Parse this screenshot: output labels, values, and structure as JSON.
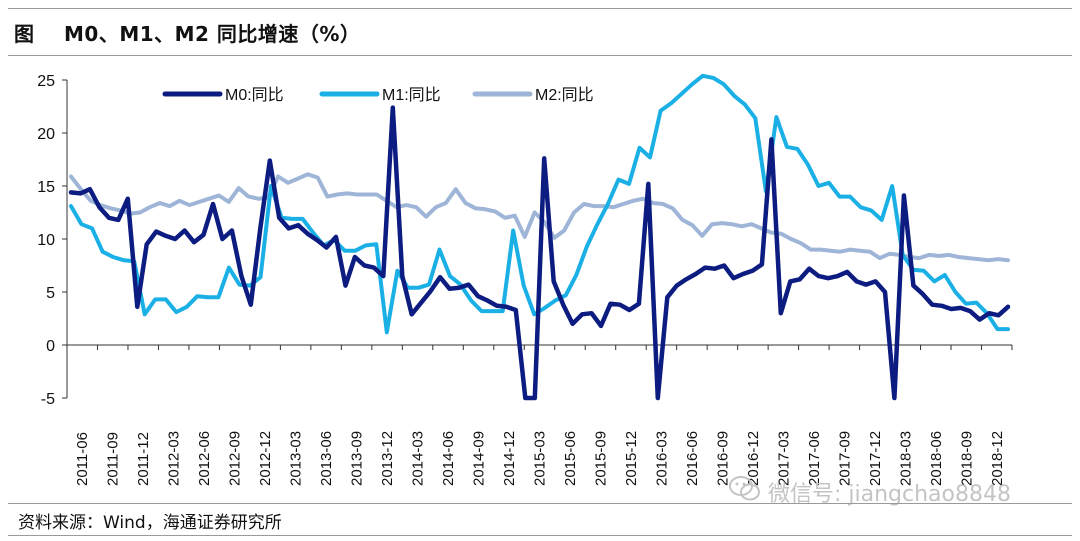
{
  "header": {
    "label": "图",
    "title": "M0、M1、M2 同比增速（%）"
  },
  "source": "资料来源：Wind，海通证券研究所",
  "watermark": "微信号: jiangchao8848",
  "chart_data": {
    "type": "line",
    "ylim": [
      -5,
      25
    ],
    "yticks": [
      -5,
      0,
      5,
      10,
      15,
      20,
      25
    ],
    "x_tick_labels": [
      "2011-06",
      "2011-09",
      "2011-12",
      "2012-03",
      "2012-06",
      "2012-09",
      "2012-12",
      "2013-03",
      "2013-06",
      "2013-09",
      "2013-12",
      "2014-03",
      "2014-06",
      "2014-09",
      "2014-12",
      "2015-03",
      "2015-06",
      "2015-09",
      "2015-12",
      "2016-03",
      "2016-06",
      "2016-09",
      "2016-12",
      "2017-03",
      "2017-06",
      "2017-09",
      "2017-12",
      "2018-03",
      "2018-06",
      "2018-09",
      "2018-12"
    ],
    "legend_position": "top",
    "series": [
      {
        "name": "M0:同比",
        "color": "#0d1c80",
        "values": [
          14.4,
          14.3,
          14.7,
          13.0,
          12.0,
          11.8,
          13.8,
          3.6,
          9.5,
          10.7,
          10.3,
          10.0,
          10.8,
          9.7,
          10.4,
          13.3,
          10.0,
          10.8,
          6.5,
          3.8,
          11.0,
          17.4,
          12.0,
          11.0,
          11.3,
          10.5,
          9.9,
          9.2,
          10.2,
          5.6,
          8.3,
          7.5,
          7.3,
          6.5,
          22.4,
          6.5,
          2.9,
          4.0,
          5.1,
          6.4,
          5.3,
          5.4,
          5.7,
          4.6,
          4.2,
          3.7,
          3.6,
          3.3,
          -5.5,
          -5.0,
          17.6,
          6.0,
          3.8,
          2.0,
          2.9,
          3.0,
          1.8,
          3.9,
          3.8,
          3.3,
          3.9,
          15.2,
          -5.0,
          4.5,
          5.6,
          6.2,
          6.7,
          7.3,
          7.2,
          7.5,
          6.3,
          6.7,
          7.0,
          7.6,
          19.4,
          3.0,
          6.0,
          6.2,
          7.2,
          6.5,
          6.3,
          6.5,
          6.9,
          6.0,
          5.7,
          6.0,
          5.0,
          -5.0,
          14.1,
          5.6,
          4.8,
          3.8,
          3.7,
          3.4,
          3.5,
          3.2,
          2.4,
          3.0,
          2.8,
          3.6
        ]
      },
      {
        "name": "M1:同比",
        "color": "#1ab0e6",
        "values": [
          13.1,
          11.4,
          11.0,
          8.8,
          8.3,
          8.0,
          7.9,
          2.9,
          4.3,
          4.3,
          3.1,
          3.6,
          4.6,
          4.5,
          4.5,
          7.3,
          5.7,
          5.6,
          6.4,
          15.0,
          12.0,
          11.9,
          11.9,
          10.6,
          9.4,
          9.9,
          8.9,
          8.9,
          9.4,
          9.5,
          1.2,
          7.0,
          5.4,
          5.4,
          5.7,
          9.0,
          6.5,
          5.7,
          4.2,
          3.2,
          3.2,
          3.2,
          10.8,
          5.6,
          2.9,
          3.5,
          4.2,
          4.7,
          6.6,
          9.3,
          11.4,
          13.3,
          15.6,
          15.2,
          18.6,
          17.7,
          22.1,
          22.8,
          23.7,
          24.6,
          25.4,
          25.2,
          24.6,
          23.5,
          22.7,
          21.4,
          14.5,
          21.5,
          18.7,
          18.5,
          17.0,
          15.0,
          15.3,
          14.0,
          14.0,
          13.0,
          12.7,
          11.8,
          15.0,
          8.5,
          7.1,
          7.0,
          6.0,
          6.6,
          5.0,
          3.9,
          4.0,
          3.0,
          1.5,
          1.5
        ]
      },
      {
        "name": "M2:同比",
        "color": "#9fb5d8",
        "values": [
          15.9,
          14.7,
          13.6,
          13.2,
          12.9,
          12.7,
          12.4,
          12.5,
          13.0,
          13.4,
          13.1,
          13.6,
          13.2,
          13.5,
          13.8,
          14.1,
          13.5,
          14.8,
          14.0,
          13.8,
          13.9,
          15.9,
          15.3,
          15.7,
          16.1,
          15.8,
          14.0,
          14.2,
          14.3,
          14.2,
          14.2,
          14.2,
          13.6,
          13.0,
          13.2,
          13.0,
          12.1,
          13.0,
          13.4,
          14.7,
          13.4,
          12.9,
          12.8,
          12.6,
          12.0,
          12.2,
          10.2,
          12.5,
          11.6,
          10.1,
          10.8,
          12.5,
          13.3,
          13.1,
          13.1,
          13.0,
          13.3,
          13.6,
          13.8,
          13.4,
          13.3,
          12.9,
          11.8,
          11.3,
          10.3,
          11.4,
          11.5,
          11.4,
          11.2,
          11.4,
          11.0,
          10.6,
          10.5,
          10.0,
          9.6,
          9.0,
          9.0,
          8.9,
          8.8,
          9.0,
          8.9,
          8.8,
          8.2,
          8.6,
          8.5,
          8.3,
          8.2,
          8.5,
          8.4,
          8.5,
          8.3,
          8.2,
          8.1,
          8.0,
          8.1,
          8.0
        ]
      }
    ]
  }
}
